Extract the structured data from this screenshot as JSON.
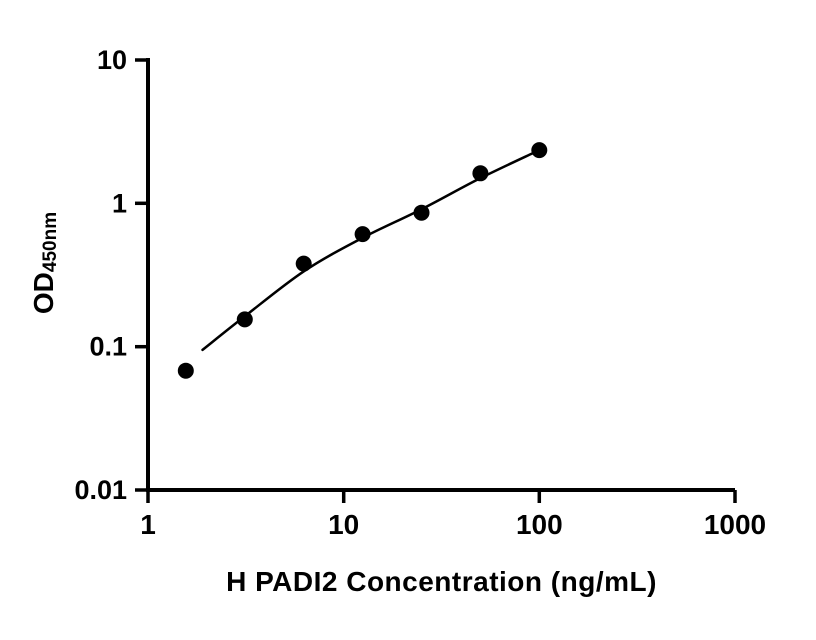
{
  "chart_data": {
    "type": "scatter",
    "title": "",
    "xlabel": "H PADI2 Concentration (ng/mL)",
    "ylabel_base": "OD",
    "ylabel_sub": "450nm",
    "x_scale": "log",
    "y_scale": "log",
    "xlim": [
      1,
      1000
    ],
    "ylim": [
      0.01,
      10
    ],
    "grid": false,
    "legend_position": "none",
    "x_ticks": [
      1,
      10,
      100,
      1000
    ],
    "x_tick_labels": [
      "1",
      "10",
      "100",
      "1000"
    ],
    "y_ticks": [
      0.01,
      0.1,
      1,
      10
    ],
    "y_tick_labels": [
      "0.01",
      "0.1",
      "1",
      "10"
    ],
    "points": [
      {
        "x": 1.56,
        "y": 0.068
      },
      {
        "x": 3.125,
        "y": 0.155
      },
      {
        "x": 6.25,
        "y": 0.38
      },
      {
        "x": 12.5,
        "y": 0.61
      },
      {
        "x": 25,
        "y": 0.86
      },
      {
        "x": 50,
        "y": 1.62
      },
      {
        "x": 100,
        "y": 2.35
      }
    ],
    "fit_curve": [
      {
        "x": 1.9,
        "y": 0.095
      },
      {
        "x": 3.125,
        "y": 0.163
      },
      {
        "x": 6.25,
        "y": 0.335
      },
      {
        "x": 12.5,
        "y": 0.575
      },
      {
        "x": 25,
        "y": 0.91
      },
      {
        "x": 50,
        "y": 1.5
      },
      {
        "x": 100,
        "y": 2.35
      }
    ],
    "colors": {
      "point": "#000000",
      "line": "#000000",
      "axis": "#000000",
      "background": "#ffffff"
    }
  }
}
